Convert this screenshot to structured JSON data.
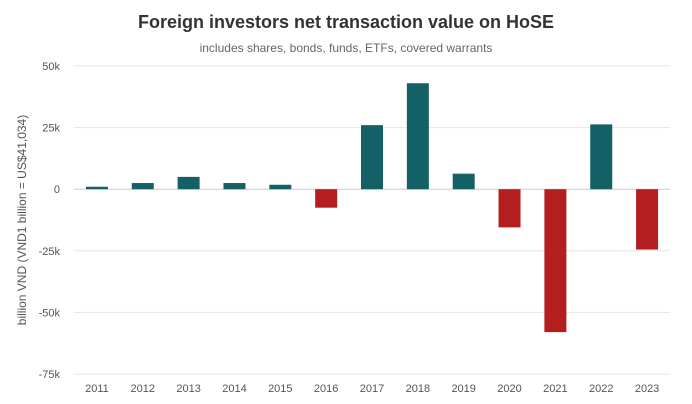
{
  "chart_data": {
    "type": "bar",
    "title": "Foreign investors net transaction value on HoSE",
    "subtitle": "includes shares, bonds, funds, ETFs, covered warrants",
    "ylabel": "billion VND (VND1 billion = US$41,034)",
    "xlabel": "",
    "categories": [
      "2011",
      "2012",
      "2013",
      "2014",
      "2015",
      "2016",
      "2017",
      "2018",
      "2019",
      "2020",
      "2021",
      "2022",
      "2023"
    ],
    "values": [
      1000,
      2500,
      5000,
      2500,
      1800,
      -7500,
      26000,
      43000,
      6300,
      -15500,
      -58000,
      26300,
      -24500
    ],
    "ylim": [
      -75000,
      50000
    ],
    "yticks": [
      50000,
      25000,
      0,
      -25000,
      -50000,
      -75000
    ],
    "ytick_labels": [
      "50k",
      "25k",
      "0",
      "-25k",
      "-50k",
      "-75k"
    ],
    "grid": true,
    "colors": {
      "positive": "#136066",
      "negative": "#B51E1E",
      "grid": "#e6e6e6",
      "zero_line": "#cccccc"
    }
  }
}
